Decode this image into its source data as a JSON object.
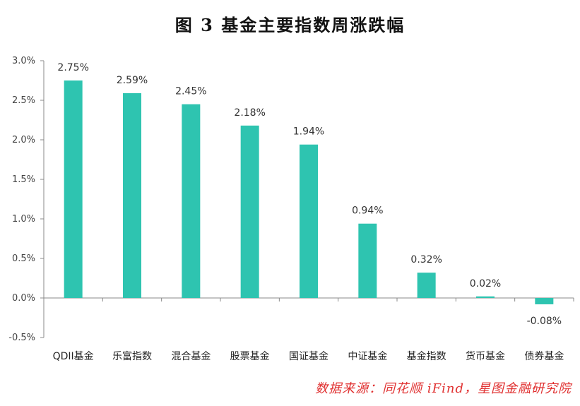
{
  "title": "图 3   基金主要指数周涨跌幅",
  "source": "数据来源：同花顺 iFind，星图金融研究院",
  "colors": {
    "bar": "#2EC4B0",
    "axis": "#888888",
    "source": "#e03030"
  },
  "chart_data": {
    "type": "bar",
    "title": "图 3   基金主要指数周涨跌幅",
    "categories": [
      "QDII基金",
      "乐富指数",
      "混合基金",
      "股票基金",
      "国证基金",
      "中证基金",
      "基金指数",
      "货币基金",
      "债券基金"
    ],
    "values": [
      2.75,
      2.59,
      2.45,
      2.18,
      1.94,
      0.94,
      0.32,
      0.02,
      -0.08
    ],
    "value_labels": [
      "2.75%",
      "2.59%",
      "2.45%",
      "2.18%",
      "1.94%",
      "0.94%",
      "0.32%",
      "0.02%",
      "-0.08%"
    ],
    "yticks": [
      3.0,
      2.5,
      2.0,
      1.5,
      1.0,
      0.5,
      0.0,
      -0.5
    ],
    "ytick_labels": [
      "3.0%",
      "2.5%",
      "2.0%",
      "1.5%",
      "1.0%",
      "0.5%",
      "0.0%",
      "-0.5%"
    ],
    "ylim": [
      -0.5,
      3.0
    ],
    "xlabel": "",
    "ylabel": "",
    "grid": false,
    "legend": "none"
  }
}
